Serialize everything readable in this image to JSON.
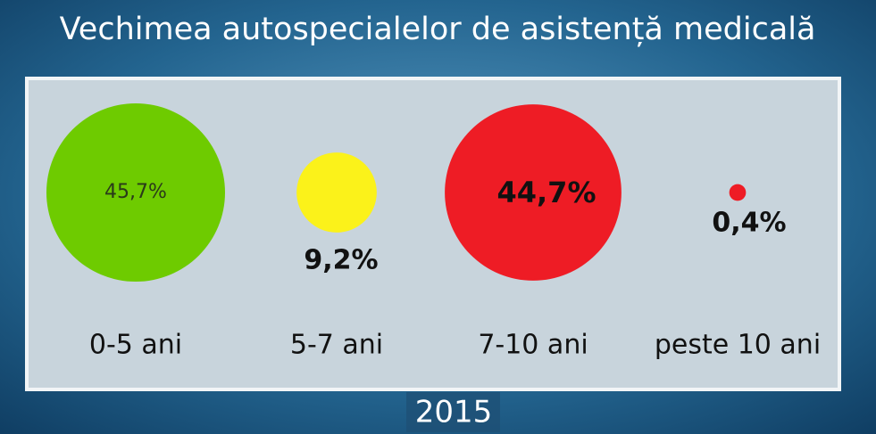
{
  "chart_data": {
    "type": "bubble",
    "title": "Vechimea autospecialelor de asistență medicală",
    "subtitle": "2015",
    "categories": [
      "0-5 ani",
      "5-7 ani",
      "7-10 ani",
      "peste 10 ani"
    ],
    "values": [
      45.7,
      9.2,
      44.7,
      0.4
    ],
    "value_labels": [
      "45,7%",
      "9,2%",
      "44,7%",
      "0,4%"
    ],
    "colors": [
      "#6ecb00",
      "#fbf21a",
      "#ee1c25",
      "#ee1c25"
    ]
  }
}
